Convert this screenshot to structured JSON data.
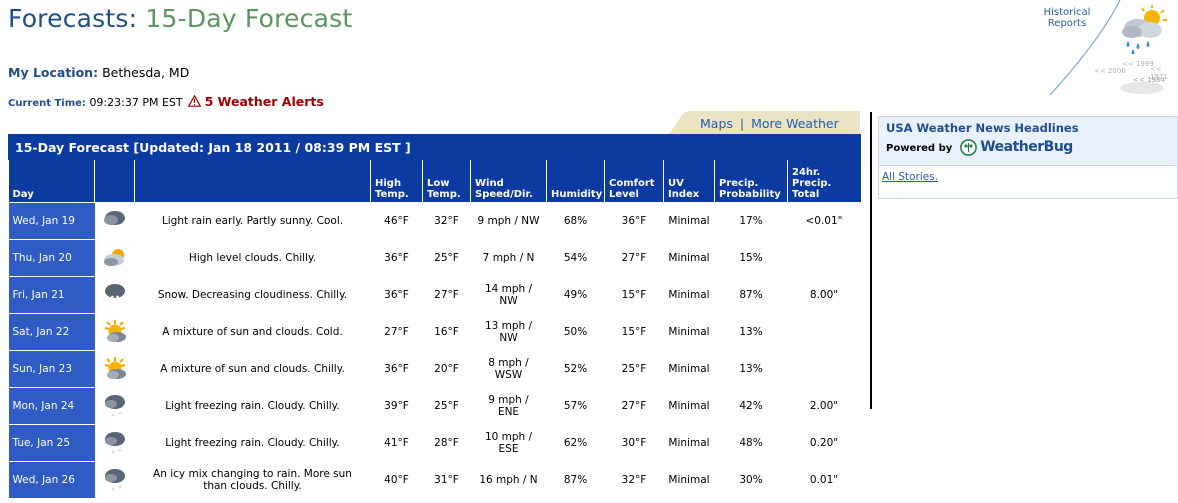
{
  "header": {
    "title_prefix": "Forecasts:",
    "title_main": "15-Day Forecast",
    "historical_line1": "Historical",
    "historical_line2": "Reports",
    "years": [
      "<< 1999",
      "<< 2000",
      "<< 1971",
      "<< 1984"
    ]
  },
  "location": {
    "label": "My Location:",
    "value": "Bethesda, MD"
  },
  "time": {
    "label": "Current Time:",
    "value": "09:23:37 PM EST",
    "alerts": "5 Weather Alerts"
  },
  "tabs": {
    "maps": "Maps",
    "separator": "|",
    "more": "More Weather"
  },
  "forecast": {
    "title": "15-Day Forecast  [Updated: Jan 18 2011 / 08:39 PM EST ]",
    "columns": {
      "day": "Day",
      "high1": "High",
      "high2": "Temp.",
      "low1": "Low",
      "low2": "Temp.",
      "wind1": "Wind",
      "wind2": "Speed/Dir.",
      "humidity": "Humidity",
      "comfort1": "Comfort",
      "comfort2": "Level",
      "uv1": "UV",
      "uv2": "Index",
      "precip1": "Precip.",
      "precip2": "Probability",
      "total1": "24hr.",
      "total2": "Precip.",
      "total3": "Total"
    },
    "rows": [
      {
        "day": "Wed, Jan 19",
        "icon": "rain-cloud-icon",
        "desc": "Light rain early. Partly sunny. Cool.",
        "high": "46°F",
        "low": "32°F",
        "wind": "9 mph / NW",
        "humidity": "68%",
        "comfort": "36°F",
        "uv": "Minimal",
        "precip": "17%",
        "total": "<0.01\""
      },
      {
        "day": "Thu, Jan 20",
        "icon": "cloudy-sun-icon",
        "desc": "High level clouds. Chilly.",
        "high": "36°F",
        "low": "25°F",
        "wind": "7 mph / N",
        "humidity": "54%",
        "comfort": "27°F",
        "uv": "Minimal",
        "precip": "15%",
        "total": ""
      },
      {
        "day": "Fri, Jan 21",
        "icon": "snow-icon",
        "desc": "Snow. Decreasing cloudiness. Chilly.",
        "high": "36°F",
        "low": "27°F",
        "wind": "14 mph / NW",
        "humidity": "49%",
        "comfort": "15°F",
        "uv": "Minimal",
        "precip": "87%",
        "total": "8.00\""
      },
      {
        "day": "Sat, Jan 22",
        "icon": "partly-sunny-icon",
        "desc": "A mixture of sun and clouds. Cold.",
        "high": "27°F",
        "low": "16°F",
        "wind": "13 mph / NW",
        "humidity": "50%",
        "comfort": "15°F",
        "uv": "Minimal",
        "precip": "13%",
        "total": ""
      },
      {
        "day": "Sun, Jan 23",
        "icon": "partly-sunny-icon",
        "desc": "A mixture of sun and clouds. Chilly.",
        "high": "36°F",
        "low": "20°F",
        "wind": "8 mph / WSW",
        "humidity": "52%",
        "comfort": "25°F",
        "uv": "Minimal",
        "precip": "13%",
        "total": ""
      },
      {
        "day": "Mon, Jan 24",
        "icon": "freezing-rain-icon",
        "desc": "Light freezing rain. Cloudy. Chilly.",
        "high": "39°F",
        "low": "25°F",
        "wind": "9 mph / ENE",
        "humidity": "57%",
        "comfort": "27°F",
        "uv": "Minimal",
        "precip": "42%",
        "total": "2.00\""
      },
      {
        "day": "Tue, Jan 25",
        "icon": "freezing-rain-icon",
        "desc": "Light freezing rain. Cloudy. Chilly.",
        "high": "41°F",
        "low": "28°F",
        "wind": "10 mph / ESE",
        "humidity": "62%",
        "comfort": "30°F",
        "uv": "Minimal",
        "precip": "48%",
        "total": "0.20\""
      },
      {
        "day": "Wed, Jan 26",
        "icon": "freezing-rain-icon",
        "desc": "An icy mix changing to rain. More sun than clouds. Chilly.",
        "high": "40°F",
        "low": "31°F",
        "wind": "16 mph / N",
        "humidity": "87%",
        "comfort": "32°F",
        "uv": "Minimal",
        "precip": "30%",
        "total": "0.01\""
      }
    ]
  },
  "news": {
    "title": "USA Weather News Headlines",
    "powered": "Powered by",
    "brand": "WeatherBug",
    "all_stories": "All Stories."
  },
  "colors": {
    "title_blue": "#1f4e8c",
    "title_green": "#5c9460",
    "table_header": "#0b3ba0",
    "day_cell": "#2e5cc4",
    "alert": "#a00000"
  }
}
